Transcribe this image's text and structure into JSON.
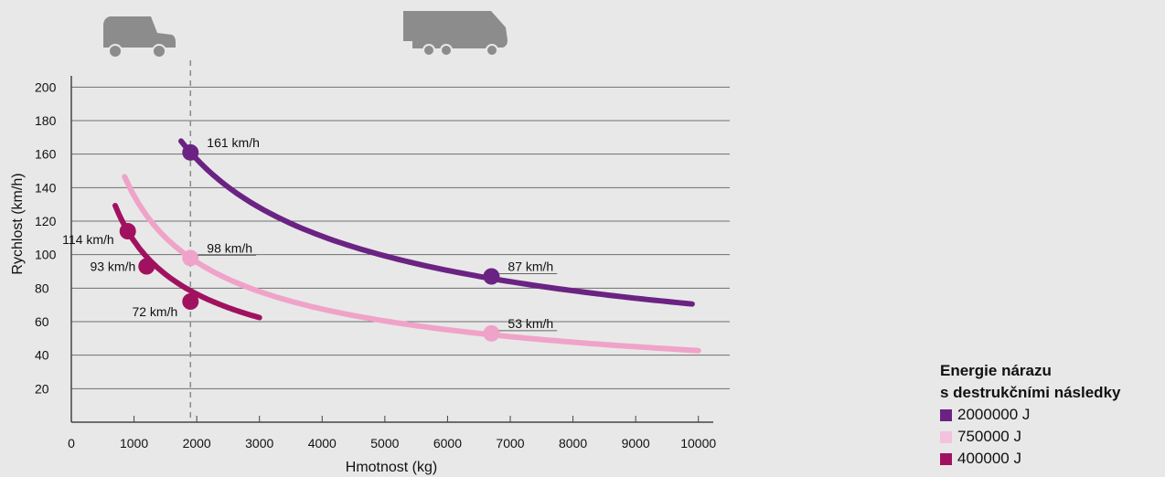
{
  "chart_data": {
    "type": "line",
    "xlabel": "Hmotnost (kg)",
    "ylabel": "Rychlost (km/h)",
    "xlim": [
      0,
      10500
    ],
    "ylim": [
      0,
      210
    ],
    "x_ticks": [
      0,
      1000,
      2000,
      3000,
      4000,
      5000,
      6000,
      7000,
      8000,
      9000,
      10000
    ],
    "y_ticks": [
      20,
      40,
      60,
      80,
      100,
      120,
      140,
      160,
      180,
      200
    ],
    "grid": "horizontal",
    "reference_line_x": 1900,
    "legend": {
      "title_line1": "Energie nárazu",
      "title_line2": "s destrukčními následky",
      "placement": "bottom-right"
    },
    "series": [
      {
        "name": "2000000 J",
        "color": "#6b2383",
        "x_range": [
          1750,
          9900
        ],
        "points": [
          {
            "x": 1900,
            "y": 161,
            "label": "161 km/h"
          },
          {
            "x": 6700,
            "y": 87,
            "label": "87 km/h"
          }
        ]
      },
      {
        "name": "750000 J",
        "color": "#f0a3c8",
        "x_range": [
          850,
          10000
        ],
        "points": [
          {
            "x": 1900,
            "y": 98,
            "label": "98 km/h"
          },
          {
            "x": 6700,
            "y": 53,
            "label": "53 km/h"
          }
        ]
      },
      {
        "name": "400000 J",
        "color": "#a0125f",
        "x_range": [
          700,
          3000
        ],
        "points": [
          {
            "x": 900,
            "y": 114,
            "label": "114 km/h"
          },
          {
            "x": 1200,
            "y": 93,
            "label": "93 km/h"
          },
          {
            "x": 1900,
            "y": 72,
            "label": "72 km/h"
          }
        ]
      }
    ]
  },
  "icons": {
    "small": "van-icon",
    "large": "truck-icon",
    "color": "#8c8c8c"
  }
}
